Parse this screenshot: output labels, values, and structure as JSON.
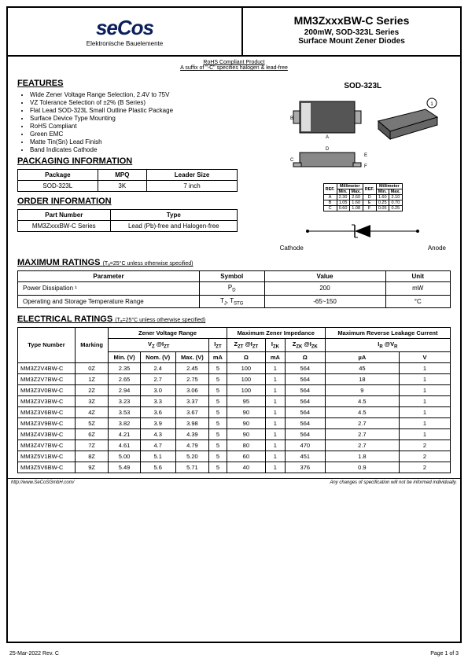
{
  "header": {
    "logo_text": "seCos",
    "logo_sub": "Elektronische Bauelemente",
    "series": "MM3ZxxxBW-C Series",
    "sub1": "200mW, SOD-323L Series",
    "sub2": "Surface Mount Zener Diodes"
  },
  "compliant": {
    "line1": "RoHS Compliant Product",
    "line2": "A suffix of \"-C\" specifies halogen & lead-free"
  },
  "features": {
    "title": "FEATURES",
    "items": [
      "Wide Zener Voltage Range Selection, 2.4V to 75V",
      "VZ Tolerance Selection of ±2% (B Series)",
      "Flat Lead SOD-323L Small Outline Plastic Package",
      "Surface Device Type Mounting",
      "RoHS Compliant",
      "Green EMC",
      "Matte Tin(Sn) Lead Finish",
      "Band Indicates Cathode"
    ]
  },
  "packaging": {
    "title": "PACKAGING INFORMATION",
    "headers": [
      "Package",
      "MPQ",
      "Leader Size"
    ],
    "row": [
      "SOD-323L",
      "3K",
      "7 inch"
    ]
  },
  "order": {
    "title": "ORDER INFORMATION",
    "headers": [
      "Part Number",
      "Type"
    ],
    "row": [
      "MM3ZxxxBW-C Series",
      "Lead (Pb)-free and Halogen-free"
    ]
  },
  "package_label": "SOD-323L",
  "dimensions": {
    "headers": [
      "REF.",
      "Min.",
      "Max.",
      "REF.",
      "Min.",
      "Max."
    ],
    "unit": "Millimeter",
    "rows": [
      [
        "A",
        "2.30",
        "2.60",
        "D",
        "1.60",
        "2.10"
      ],
      [
        "B",
        "1.05",
        "1.60",
        "E",
        "0.25",
        "0.70"
      ],
      [
        "C",
        "0.60",
        "1.08",
        "F",
        "0.05",
        "0.25"
      ]
    ]
  },
  "cathode_label": "Cathode",
  "anode_label": "Anode",
  "max_ratings": {
    "title": "MAXIMUM RATINGS",
    "cond": "(Tₐ=25°C unless otherwise specified)",
    "headers": [
      "Parameter",
      "Symbol",
      "Value",
      "Unit"
    ],
    "rows": [
      [
        "Power Dissipation ¹",
        "P_D",
        "200",
        "mW"
      ],
      [
        "Operating and Storage Temperature Range",
        "T_J, T_STG",
        "-65~150",
        "°C"
      ]
    ]
  },
  "elec": {
    "title": "ELECTRICAL RATINGS",
    "cond": "(Tₐ=25°C unless otherwise specified)",
    "h_type": "Type Number",
    "h_mark": "Marking",
    "h_zvr": "Zener Voltage Range",
    "h_mzi": "Maximum Zener Impedance",
    "h_mrlc": "Maximum Reverse Leakage Current",
    "sub_vz": "V_Z @I_ZT",
    "sub_izt": "I_ZT",
    "sub_zzt": "Z_ZT @I_ZT",
    "sub_izk": "I_ZK",
    "sub_zzk": "Z_ZK @I_ZK",
    "sub_ir": "I_R @V_R",
    "units": [
      "Min. (V)",
      "Nom. (V)",
      "Max. (V)",
      "mA",
      "Ω",
      "mA",
      "Ω",
      "µA",
      "V"
    ],
    "rows": [
      [
        "MM3Z2V4BW-C",
        "0Z",
        "2.35",
        "2.4",
        "2.45",
        "5",
        "100",
        "1",
        "564",
        "45",
        "1"
      ],
      [
        "MM3Z2V7BW-C",
        "1Z",
        "2.65",
        "2.7",
        "2.75",
        "5",
        "100",
        "1",
        "564",
        "18",
        "1"
      ],
      [
        "MM3Z3V0BW-C",
        "2Z",
        "2.94",
        "3.0",
        "3.06",
        "5",
        "100",
        "1",
        "564",
        "9",
        "1"
      ],
      [
        "MM3Z3V3BW-C",
        "3Z",
        "3.23",
        "3.3",
        "3.37",
        "5",
        "95",
        "1",
        "564",
        "4.5",
        "1"
      ],
      [
        "MM3Z3V6BW-C",
        "4Z",
        "3.53",
        "3.6",
        "3.67",
        "5",
        "90",
        "1",
        "564",
        "4.5",
        "1"
      ],
      [
        "MM3Z3V9BW-C",
        "5Z",
        "3.82",
        "3.9",
        "3.98",
        "5",
        "90",
        "1",
        "564",
        "2.7",
        "1"
      ],
      [
        "MM3Z4V3BW-C",
        "6Z",
        "4.21",
        "4.3",
        "4.39",
        "5",
        "90",
        "1",
        "564",
        "2.7",
        "1"
      ],
      [
        "MM3Z4V7BW-C",
        "7Z",
        "4.61",
        "4.7",
        "4.79",
        "5",
        "80",
        "1",
        "470",
        "2.7",
        "2"
      ],
      [
        "MM3Z5V1BW-C",
        "8Z",
        "5.00",
        "5.1",
        "5.20",
        "5",
        "60",
        "1",
        "451",
        "1.8",
        "2"
      ],
      [
        "MM3Z5V6BW-C",
        "9Z",
        "5.49",
        "5.6",
        "5.71",
        "5",
        "40",
        "1",
        "376",
        "0.9",
        "2"
      ]
    ]
  },
  "footer": {
    "url": "http://www.SeCoSGmbH.com/",
    "disclaimer": "Any changes of specification will not be informed individually.",
    "date": "25-Mar-2022 Rev. C",
    "page": "Page 1 of 3"
  }
}
